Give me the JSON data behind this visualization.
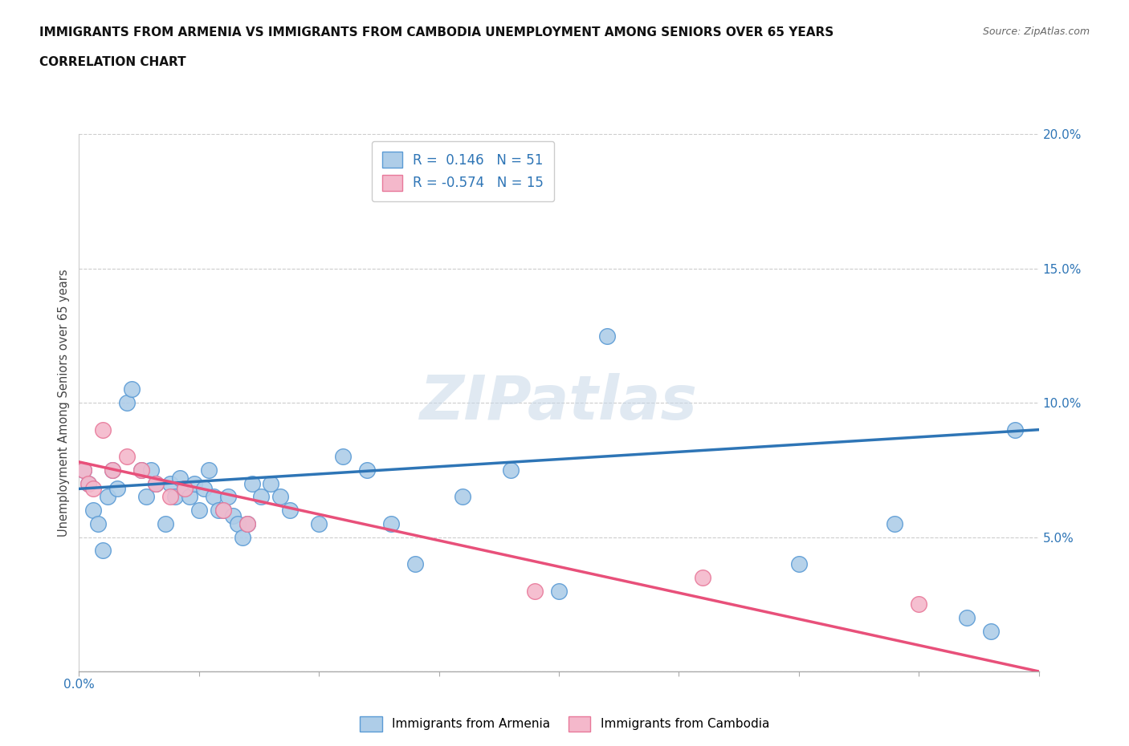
{
  "title_line1": "IMMIGRANTS FROM ARMENIA VS IMMIGRANTS FROM CAMBODIA UNEMPLOYMENT AMONG SENIORS OVER 65 YEARS",
  "title_line2": "CORRELATION CHART",
  "source": "Source: ZipAtlas.com",
  "ylabel": "Unemployment Among Seniors over 65 years",
  "xlim": [
    0.0,
    0.2
  ],
  "ylim": [
    0.0,
    0.2
  ],
  "armenia_R": 0.146,
  "armenia_N": 51,
  "cambodia_R": -0.574,
  "cambodia_N": 15,
  "armenia_color": "#aecde8",
  "armenia_edge_color": "#5b9bd5",
  "armenia_line_color": "#2e75b6",
  "cambodia_color": "#f4b8cb",
  "cambodia_edge_color": "#e8799a",
  "cambodia_line_color": "#e8507a",
  "legend_label_armenia": "Immigrants from Armenia",
  "legend_label_cambodia": "Immigrants from Cambodia",
  "watermark": "ZIPatlas",
  "armenia_x": [
    0.001,
    0.002,
    0.003,
    0.004,
    0.005,
    0.006,
    0.007,
    0.008,
    0.01,
    0.011,
    0.013,
    0.014,
    0.015,
    0.016,
    0.018,
    0.019,
    0.02,
    0.021,
    0.022,
    0.023,
    0.024,
    0.025,
    0.026,
    0.027,
    0.028,
    0.029,
    0.03,
    0.031,
    0.032,
    0.033,
    0.034,
    0.035,
    0.036,
    0.038,
    0.04,
    0.042,
    0.044,
    0.05,
    0.055,
    0.06,
    0.065,
    0.07,
    0.08,
    0.09,
    0.1,
    0.11,
    0.15,
    0.17,
    0.185,
    0.19,
    0.195
  ],
  "armenia_y": [
    0.075,
    0.07,
    0.06,
    0.055,
    0.045,
    0.065,
    0.075,
    0.068,
    0.1,
    0.105,
    0.075,
    0.065,
    0.075,
    0.07,
    0.055,
    0.07,
    0.065,
    0.072,
    0.068,
    0.065,
    0.07,
    0.06,
    0.068,
    0.075,
    0.065,
    0.06,
    0.06,
    0.065,
    0.058,
    0.055,
    0.05,
    0.055,
    0.07,
    0.065,
    0.07,
    0.065,
    0.06,
    0.055,
    0.08,
    0.075,
    0.055,
    0.04,
    0.065,
    0.075,
    0.03,
    0.125,
    0.04,
    0.055,
    0.02,
    0.015,
    0.09
  ],
  "cambodia_x": [
    0.001,
    0.002,
    0.003,
    0.005,
    0.007,
    0.01,
    0.013,
    0.016,
    0.019,
    0.022,
    0.03,
    0.035,
    0.095,
    0.13,
    0.175
  ],
  "cambodia_y": [
    0.075,
    0.07,
    0.068,
    0.09,
    0.075,
    0.08,
    0.075,
    0.07,
    0.065,
    0.068,
    0.06,
    0.055,
    0.03,
    0.035,
    0.025
  ],
  "arm_line_x0": 0.0,
  "arm_line_y0": 0.068,
  "arm_line_x1": 0.2,
  "arm_line_y1": 0.09,
  "cam_line_x0": 0.0,
  "cam_line_y0": 0.078,
  "cam_line_x1": 0.2,
  "cam_line_y1": 0.0
}
